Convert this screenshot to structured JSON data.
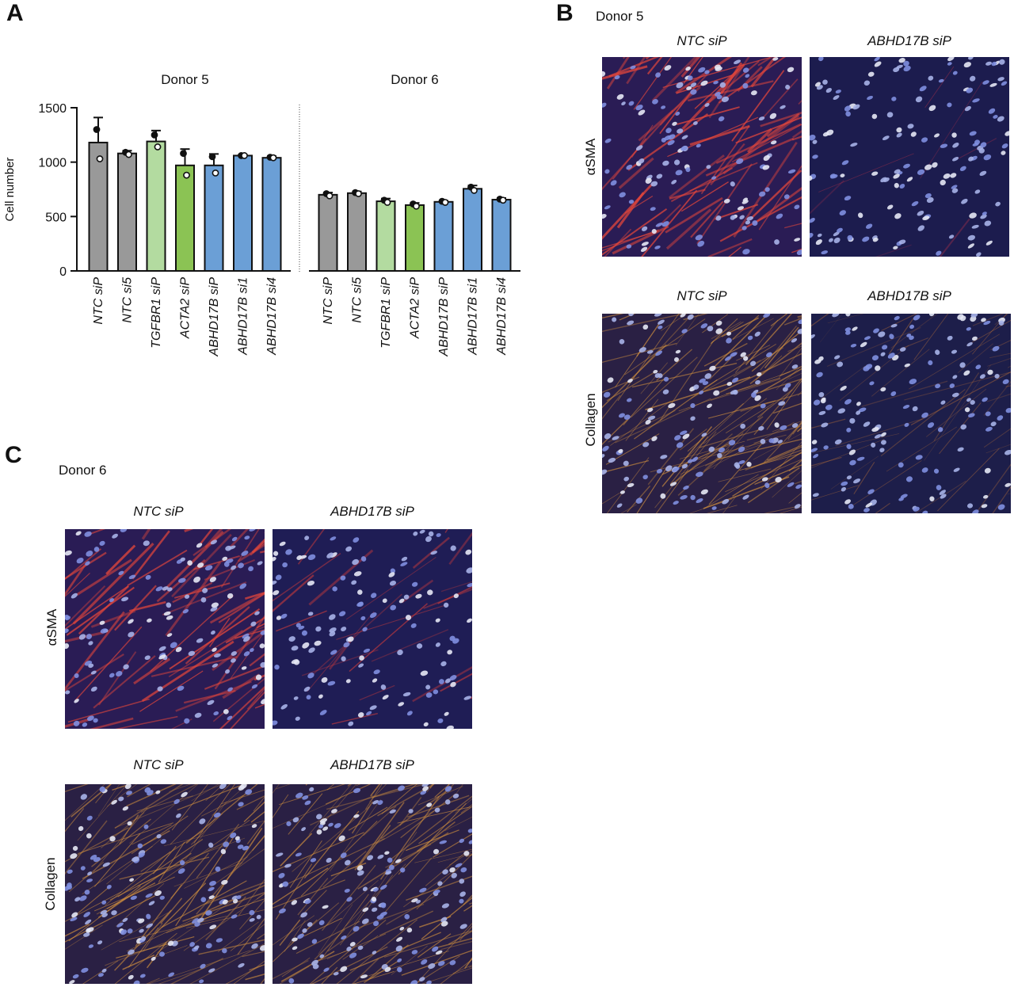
{
  "panels": {
    "a": {
      "letter": "A"
    },
    "b": {
      "letter": "B",
      "donor": "Donor 5",
      "col_titles": [
        "NTC siP",
        "ABHD17B siP",
        "NTC siP",
        "ABHD17B siP"
      ],
      "row_labels": [
        "αSMA",
        "Collagen"
      ]
    },
    "c": {
      "letter": "C",
      "donor": "Donor 6",
      "col_titles": [
        "NTC siP",
        "ABHD17B siP",
        "NTC siP",
        "ABHD17B siP"
      ],
      "row_labels": [
        "αSMA",
        "Collagen"
      ]
    }
  },
  "chart_data": {
    "type": "bar",
    "ylabel": "Cell number",
    "ylim": [
      0,
      1500
    ],
    "yticks": [
      "0",
      "500",
      "1000",
      "1500"
    ],
    "groups": [
      {
        "title": "Donor 5",
        "categories": [
          "NTC siP",
          "NTC si5",
          "TGFBR1 siP",
          "ACTA2 siP",
          "ABHD17B siP",
          "ABHD17B si1",
          "ABHD17B si4"
        ],
        "values": [
          1180,
          1080,
          1190,
          970,
          970,
          1060,
          1040
        ],
        "errors": [
          230,
          25,
          100,
          150,
          105,
          10,
          15
        ],
        "points": [
          [
            1300,
            1030
          ],
          [
            1090,
            1070
          ],
          [
            1250,
            1140
          ],
          [
            1080,
            880
          ],
          [
            1050,
            900
          ],
          [
            1060,
            1060
          ],
          [
            1045,
            1040
          ]
        ],
        "colors": [
          "#999999",
          "#999999",
          "#b3dba0",
          "#8bc354",
          "#6b9fd6",
          "#6b9fd6",
          "#6b9fd6"
        ]
      },
      {
        "title": "Donor 6",
        "categories": [
          "NTC siP",
          "NTC si5",
          "TGFBR1 siP",
          "ACTA2 siP",
          "ABHD17B siP",
          "ABHD17B si1",
          "ABHD17B si4"
        ],
        "values": [
          700,
          715,
          640,
          605,
          635,
          755,
          655
        ],
        "errors": [
          20,
          15,
          25,
          20,
          10,
          30,
          15
        ],
        "points": [
          [
            710,
            690
          ],
          [
            720,
            710
          ],
          [
            650,
            630
          ],
          [
            615,
            595
          ],
          [
            640,
            630
          ],
          [
            770,
            740
          ],
          [
            660,
            650
          ]
        ],
        "colors": [
          "#999999",
          "#999999",
          "#b3dba0",
          "#8bc354",
          "#6b9fd6",
          "#6b9fd6",
          "#6b9fd6"
        ]
      }
    ]
  }
}
